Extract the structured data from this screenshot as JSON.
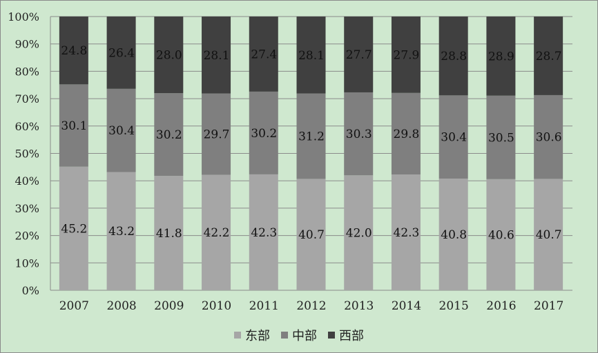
{
  "chart_data": {
    "type": "bar",
    "stacked": "percent",
    "categories": [
      "2007",
      "2008",
      "2009",
      "2010",
      "2011",
      "2012",
      "2013",
      "2014",
      "2015",
      "2016",
      "2017"
    ],
    "series": [
      {
        "name": "东部",
        "color": "#a6a6a6",
        "values": [
          45.2,
          43.2,
          41.8,
          42.2,
          42.3,
          40.7,
          42.0,
          42.3,
          40.8,
          40.6,
          40.7
        ]
      },
      {
        "name": "中部",
        "color": "#7f7f7f",
        "values": [
          30.1,
          30.4,
          30.2,
          29.7,
          30.2,
          31.2,
          30.3,
          29.8,
          30.4,
          30.5,
          30.6
        ]
      },
      {
        "name": "西部",
        "color": "#404040",
        "values": [
          24.8,
          26.4,
          28.0,
          28.1,
          27.4,
          28.1,
          27.7,
          27.9,
          28.8,
          28.9,
          28.7
        ]
      }
    ],
    "y_ticks": [
      "0%",
      "10%",
      "20%",
      "30%",
      "40%",
      "50%",
      "60%",
      "70%",
      "80%",
      "90%",
      "100%"
    ],
    "ylim": [
      0,
      100
    ],
    "grid": true,
    "legend_position": "bottom"
  }
}
